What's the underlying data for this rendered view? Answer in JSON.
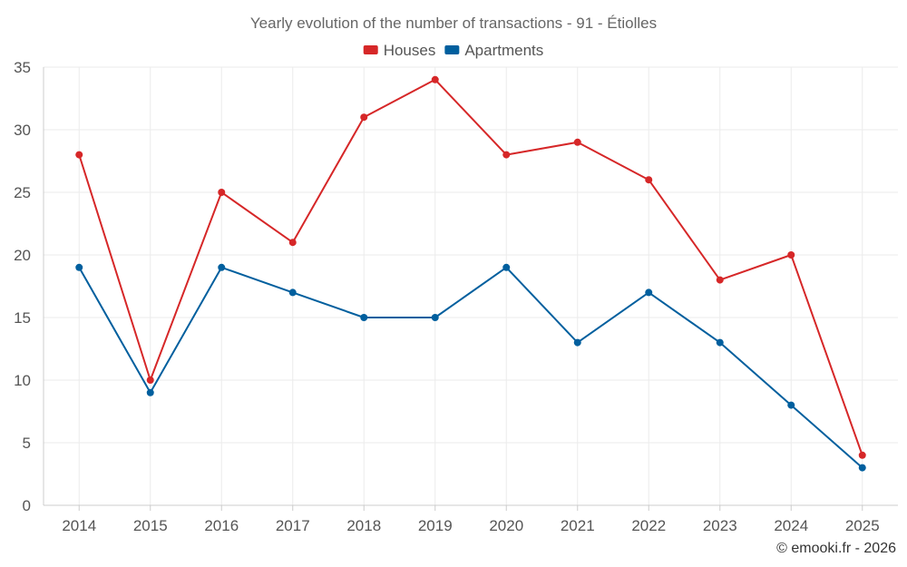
{
  "chart_data": {
    "type": "line",
    "title": "Yearly evolution of the number of transactions - 91 - Étiolles",
    "categories": [
      "2014",
      "2015",
      "2016",
      "2017",
      "2018",
      "2019",
      "2020",
      "2021",
      "2022",
      "2023",
      "2024",
      "2025"
    ],
    "series": [
      {
        "name": "Houses",
        "color": "#d62728",
        "values": [
          28,
          10,
          25,
          21,
          31,
          34,
          28,
          29,
          26,
          18,
          20,
          4
        ]
      },
      {
        "name": "Apartments",
        "color": "#005f9e",
        "values": [
          19,
          9,
          19,
          17,
          15,
          15,
          19,
          13,
          17,
          13,
          8,
          3
        ]
      }
    ],
    "ylim": [
      0,
      35
    ],
    "yticks": [
      0,
      5,
      10,
      15,
      20,
      25,
      30,
      35
    ],
    "xlabel": "",
    "ylabel": "",
    "grid": true,
    "legend_position": "top-center"
  },
  "credit": "© emooki.fr - 2026"
}
